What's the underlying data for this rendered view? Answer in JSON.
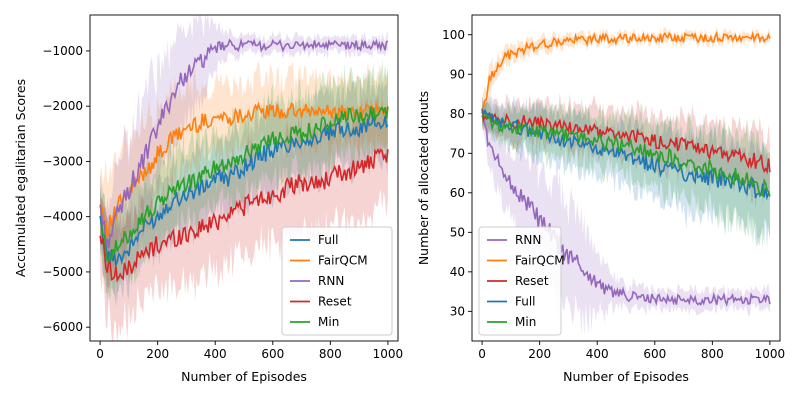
{
  "chart_data": [
    {
      "type": "line",
      "xlabel": "Number of Episodes",
      "ylabel": "Accumulated egalitarian Scores",
      "xlim": [
        -35,
        1035
      ],
      "ylim": [
        -6250,
        -350
      ],
      "xticks": [
        0,
        200,
        400,
        600,
        800,
        1000
      ],
      "yticks": [
        -6000,
        -5000,
        -4000,
        -3000,
        -2000,
        -1000
      ],
      "legend_position": "lower-right",
      "series": [
        {
          "name": "Full",
          "color": "#1f77b4",
          "x": [
            0,
            25,
            50,
            75,
            100,
            150,
            200,
            250,
            300,
            350,
            400,
            450,
            500,
            550,
            600,
            650,
            700,
            750,
            800,
            850,
            900,
            950,
            1000
          ],
          "y": [
            -4100,
            -4700,
            -4750,
            -4700,
            -4600,
            -4200,
            -4000,
            -3700,
            -3600,
            -3500,
            -3300,
            -3300,
            -3100,
            -2900,
            -2800,
            -2700,
            -2600,
            -2600,
            -2500,
            -2400,
            -2400,
            -2300,
            -2300
          ],
          "band": [
            500,
            600,
            600,
            600,
            600,
            600,
            650,
            650,
            650,
            700,
            700,
            700,
            700,
            700,
            700,
            700,
            700,
            700,
            700,
            700,
            700,
            700,
            700
          ]
        },
        {
          "name": "FairQCM",
          "color": "#ff7f0e",
          "x": [
            0,
            25,
            50,
            75,
            100,
            150,
            200,
            250,
            300,
            350,
            400,
            450,
            500,
            550,
            600,
            650,
            700,
            750,
            800,
            850,
            900,
            950,
            1000
          ],
          "y": [
            -3700,
            -4200,
            -4000,
            -3700,
            -3600,
            -3200,
            -2900,
            -2600,
            -2400,
            -2300,
            -2200,
            -2200,
            -2150,
            -2100,
            -2100,
            -2100,
            -2100,
            -2100,
            -2100,
            -2100,
            -2100,
            -2100,
            -2100
          ],
          "band": [
            700,
            900,
            900,
            900,
            900,
            900,
            850,
            800,
            750,
            700,
            650,
            600,
            600,
            600,
            600,
            600,
            600,
            600,
            600,
            600,
            600,
            600,
            600
          ]
        },
        {
          "name": "RNN",
          "color": "#9467bd",
          "x": [
            0,
            25,
            50,
            75,
            100,
            150,
            200,
            250,
            300,
            350,
            400,
            450,
            500,
            550,
            600,
            650,
            700,
            750,
            800,
            850,
            900,
            950,
            1000
          ],
          "y": [
            -3800,
            -4500,
            -4100,
            -3800,
            -3500,
            -3000,
            -2400,
            -1800,
            -1400,
            -1200,
            -950,
            -900,
            -900,
            -900,
            -900,
            -900,
            -900,
            -900,
            -900,
            -900,
            -900,
            -900,
            -900
          ],
          "band": [
            600,
            700,
            800,
            900,
            1000,
            1100,
            1000,
            900,
            800,
            700,
            350,
            200,
            150,
            150,
            150,
            150,
            150,
            150,
            150,
            150,
            150,
            150,
            150
          ]
        },
        {
          "name": "Reset",
          "color": "#d62728",
          "x": [
            0,
            25,
            50,
            75,
            100,
            150,
            200,
            250,
            300,
            350,
            400,
            450,
            500,
            550,
            600,
            650,
            700,
            750,
            800,
            850,
            900,
            950,
            1000
          ],
          "y": [
            -4300,
            -4900,
            -5000,
            -5100,
            -4900,
            -4700,
            -4500,
            -4400,
            -4300,
            -4200,
            -4100,
            -3900,
            -3800,
            -3700,
            -3600,
            -3500,
            -3400,
            -3400,
            -3300,
            -3200,
            -3100,
            -3000,
            -2900
          ],
          "band": [
            800,
            900,
            900,
            900,
            900,
            900,
            900,
            900,
            900,
            900,
            900,
            900,
            900,
            900,
            900,
            900,
            900,
            900,
            900,
            900,
            900,
            900,
            900
          ]
        },
        {
          "name": "Min",
          "color": "#2ca02c",
          "x": [
            0,
            25,
            50,
            75,
            100,
            150,
            200,
            250,
            300,
            350,
            400,
            450,
            500,
            550,
            600,
            650,
            700,
            750,
            800,
            850,
            900,
            950,
            1000
          ],
          "y": [
            -4100,
            -4700,
            -4600,
            -4500,
            -4300,
            -4000,
            -3800,
            -3500,
            -3400,
            -3300,
            -3100,
            -3000,
            -2900,
            -2700,
            -2600,
            -2500,
            -2500,
            -2400,
            -2300,
            -2200,
            -2200,
            -2100,
            -2100
          ],
          "band": [
            600,
            700,
            700,
            700,
            700,
            700,
            700,
            700,
            700,
            700,
            700,
            700,
            700,
            700,
            700,
            700,
            700,
            700,
            700,
            700,
            700,
            700,
            700
          ]
        }
      ],
      "legend_order": [
        "Full",
        "FairQCM",
        "RNN",
        "Reset",
        "Min"
      ]
    },
    {
      "type": "line",
      "xlabel": "Number of Episodes",
      "ylabel": "Number of allocated donuts",
      "xlim": [
        -35,
        1035
      ],
      "ylim": [
        22.5,
        105
      ],
      "xticks": [
        0,
        200,
        400,
        600,
        800,
        1000
      ],
      "yticks": [
        30,
        40,
        50,
        60,
        70,
        80,
        90,
        100
      ],
      "legend_position": "lower-left",
      "series": [
        {
          "name": "RNN",
          "color": "#9467bd",
          "x": [
            0,
            25,
            50,
            75,
            100,
            150,
            200,
            250,
            300,
            350,
            400,
            450,
            500,
            550,
            600,
            650,
            700,
            750,
            800,
            850,
            900,
            950,
            1000
          ],
          "y": [
            80,
            72,
            68,
            66,
            62,
            58,
            53,
            48,
            44,
            41,
            37,
            35,
            34,
            33.5,
            33,
            33,
            33,
            33,
            33,
            33,
            33,
            33,
            33
          ],
          "band": [
            2,
            5,
            7,
            8,
            10,
            12,
            14,
            15,
            14,
            12,
            8,
            4,
            3,
            3,
            2.5,
            2.5,
            2.5,
            2.5,
            2.5,
            2.5,
            2.5,
            2.5,
            2.5
          ]
        },
        {
          "name": "FairQCM",
          "color": "#ff7f0e",
          "x": [
            0,
            25,
            50,
            75,
            100,
            150,
            200,
            250,
            300,
            350,
            400,
            450,
            500,
            550,
            600,
            650,
            700,
            750,
            800,
            850,
            900,
            950,
            1000
          ],
          "y": [
            80,
            88,
            92,
            94,
            95,
            96.5,
            97.5,
            98,
            98.5,
            98.7,
            99,
            99,
            99,
            99.2,
            99.2,
            99.2,
            99.2,
            99.3,
            99.3,
            99.3,
            99.3,
            99.3,
            99.3
          ],
          "band": [
            3,
            3,
            2.5,
            2.5,
            2,
            2,
            1.8,
            1.6,
            1.5,
            1.5,
            1.4,
            1.4,
            1.3,
            1.3,
            1.3,
            1.3,
            1.3,
            1.3,
            1.3,
            1.3,
            1.3,
            1.3,
            1.3
          ]
        },
        {
          "name": "Reset",
          "color": "#d62728",
          "x": [
            0,
            25,
            50,
            75,
            100,
            150,
            200,
            250,
            300,
            350,
            400,
            450,
            500,
            550,
            600,
            650,
            700,
            750,
            800,
            850,
            900,
            950,
            1000
          ],
          "y": [
            80,
            79,
            79,
            78.5,
            78,
            78,
            77.5,
            77,
            76.5,
            76,
            75.5,
            75,
            74.5,
            74,
            73,
            72.5,
            72,
            71,
            70.5,
            70,
            69,
            68,
            67
          ],
          "band": [
            3,
            4,
            4,
            4,
            5,
            5,
            5,
            5,
            5.5,
            5.5,
            6,
            6,
            6,
            6,
            6.5,
            6.5,
            7,
            7,
            7,
            7.5,
            7.5,
            8,
            8
          ]
        },
        {
          "name": "Full",
          "color": "#1f77b4",
          "x": [
            0,
            25,
            50,
            75,
            100,
            150,
            200,
            250,
            300,
            350,
            400,
            450,
            500,
            550,
            600,
            650,
            700,
            750,
            800,
            850,
            900,
            950,
            1000
          ],
          "y": [
            80,
            79,
            78,
            77.5,
            77,
            76,
            75,
            74,
            73,
            72,
            71,
            70,
            69,
            68,
            67,
            66,
            65,
            64.5,
            64,
            63,
            62,
            61,
            60
          ],
          "band": [
            3,
            4,
            4,
            4.5,
            5,
            5.5,
            6,
            6,
            6.5,
            7,
            7,
            7.5,
            8,
            8,
            8.5,
            9,
            9,
            9.5,
            10,
            10,
            10.5,
            11,
            11
          ]
        },
        {
          "name": "Min",
          "color": "#2ca02c",
          "x": [
            0,
            25,
            50,
            75,
            100,
            150,
            200,
            250,
            300,
            350,
            400,
            450,
            500,
            550,
            600,
            650,
            700,
            750,
            800,
            850,
            900,
            950,
            1000
          ],
          "y": [
            80,
            78,
            77,
            77,
            76.5,
            76,
            75.5,
            75,
            74.5,
            74,
            73,
            72.5,
            72,
            71,
            70,
            69,
            68,
            67,
            66,
            65,
            64,
            62,
            60
          ],
          "band": [
            3,
            4,
            4,
            4.5,
            5,
            5,
            5.5,
            6,
            6,
            6.5,
            7,
            7,
            7.5,
            8,
            8,
            8.5,
            9,
            9.5,
            10,
            10.5,
            11,
            11.5,
            12
          ]
        }
      ],
      "legend_order": [
        "RNN",
        "FairQCM",
        "Reset",
        "Full",
        "Min"
      ]
    }
  ]
}
